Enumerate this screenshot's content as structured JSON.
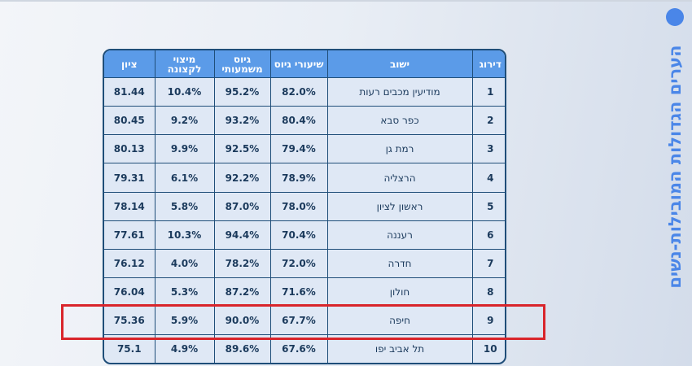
{
  "title": "הערים הגדולות המובילות-נשים",
  "colors": {
    "accent": "#4a86e8",
    "header_bg": "#5b9be8",
    "border": "#1f4e79",
    "highlight": "#d9252b"
  },
  "table": {
    "headers": [
      "דירוג",
      "ישוב",
      "שיעורי גיוס",
      "גיוס משמעותי",
      "מיצוי לקצונה",
      "ציון"
    ],
    "rows": [
      [
        "1",
        "מודיעין מכבים רעות",
        "82.0%",
        "95.2%",
        "10.4%",
        "81.44"
      ],
      [
        "2",
        "כפר סבא",
        "80.4%",
        "93.2%",
        "9.2%",
        "80.45"
      ],
      [
        "3",
        "רמת גן",
        "79.4%",
        "92.5%",
        "9.9%",
        "80.13"
      ],
      [
        "4",
        "הרצליה",
        "78.9%",
        "92.2%",
        "6.1%",
        "79.31"
      ],
      [
        "5",
        "ראשון לציון",
        "78.0%",
        "87.0%",
        "5.8%",
        "78.14"
      ],
      [
        "6",
        "רעננה",
        "70.4%",
        "94.4%",
        "10.3%",
        "77.61"
      ],
      [
        "7",
        "חדרה",
        "72.0%",
        "78.2%",
        "4.0%",
        "76.12"
      ],
      [
        "8",
        "חולון",
        "71.6%",
        "87.2%",
        "5.3%",
        "76.04"
      ],
      [
        "9",
        "חיפה",
        "67.7%",
        "90.0%",
        "5.9%",
        "75.36"
      ],
      [
        "10",
        "תל אביב יפו",
        "67.6%",
        "89.6%",
        "4.9%",
        "75.1"
      ]
    ],
    "highlighted_row": 9
  }
}
